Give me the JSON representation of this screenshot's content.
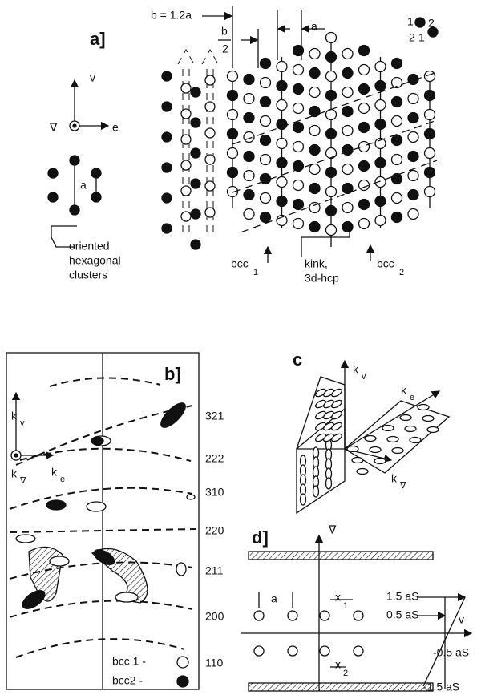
{
  "panel_a": {
    "label": "a]",
    "b_label": "b = 1.2a",
    "b_half": {
      "num": "b",
      "den": "2"
    },
    "a_label": "a",
    "site_numbers": [
      "1",
      "2",
      "2",
      "1"
    ],
    "vectors": {
      "v": "v",
      "e": "e",
      "grad": "∇"
    },
    "cluster_a": "a",
    "cluster_caption": [
      "oriented",
      "hexagonal",
      "clusters"
    ],
    "bcc1": {
      "text": "bcc",
      "sub": "1"
    },
    "kink": [
      "kink,",
      "3d-hcp"
    ],
    "bcc2": {
      "text": "bcc",
      "sub": "2"
    }
  },
  "panel_b": {
    "label": "b]",
    "k_v": {
      "text": "k",
      "sub": "v"
    },
    "k_grad": {
      "text": "k",
      "sub": "∇"
    },
    "k_e": {
      "text": "k",
      "sub": "e"
    },
    "levels": [
      "321",
      "222",
      "310",
      "220",
      "211",
      "200",
      "110"
    ],
    "legend": [
      "bcc 1 -",
      "bcc2 -"
    ]
  },
  "panel_c": {
    "label": "c",
    "k_v": {
      "text": "k",
      "sub": "v"
    },
    "k_e": {
      "text": "k",
      "sub": "e"
    },
    "k_grad": {
      "text": "k",
      "sub": "∇"
    }
  },
  "panel_d": {
    "label": "d]",
    "axis_grad": "∇",
    "axis_v": "v",
    "a": "a",
    "x1": {
      "text": "x",
      "sub": "1"
    },
    "x2": {
      "text": "x",
      "sub": "2"
    },
    "shear": [
      "1.5 aS",
      "0.5 aS",
      "-0.5 aS",
      "-1.5 aS"
    ]
  }
}
